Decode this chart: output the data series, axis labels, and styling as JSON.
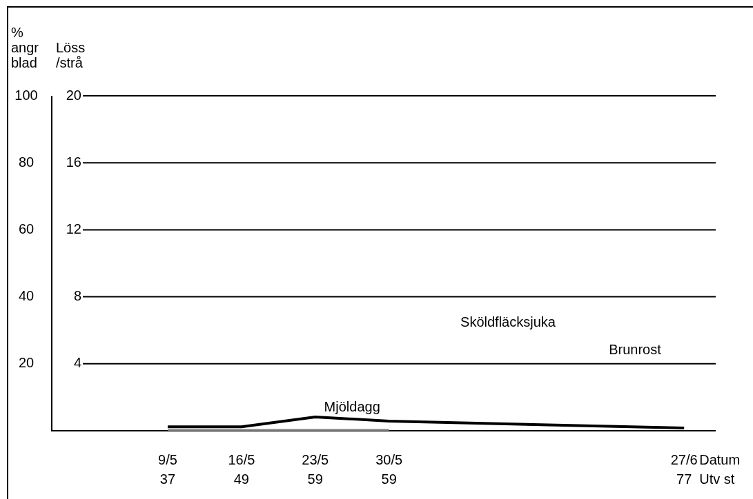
{
  "chart_data": {
    "type": "line",
    "x": [
      "--05-09",
      "--05-16",
      "--05-23",
      "--05-30",
      "--06-27"
    ],
    "xlim": [
      "--04-28",
      "--06-30"
    ],
    "xticks": [
      {
        "value": "--05-09",
        "label": "9/5\n37"
      },
      {
        "value": "--05-16",
        "label": "16/5\n49"
      },
      {
        "value": "--05-23",
        "label": "23/5\n59"
      },
      {
        "value": "--05-30",
        "label": "30/5\n59"
      },
      {
        "value": "--06-27",
        "label": "27/6\n77"
      }
    ],
    "xlabel": "Datum\nUtv st",
    "ylabel": "% angr blad",
    "y2label": "Löss /strå",
    "ylim": [
      0,
      100
    ],
    "yticks": [
      20,
      40,
      60,
      80,
      100
    ],
    "y2lim": [
      0,
      20
    ],
    "y2ticks": [
      4,
      8,
      12,
      16,
      20
    ],
    "series": [
      {
        "name": "Mjöldagg",
        "color": "#000000",
        "values": [
          1.2,
          1.2,
          4.1,
          2.9,
          0.8
        ]
      },
      {
        "color": "#808080",
        "axis": "y2",
        "x": [
          "--05-09",
          "--05-16",
          "--05-23",
          "--05-30"
        ],
        "values": [
          0,
          0,
          0,
          0
        ]
      }
    ],
    "annotations": [
      "Sköldfläcksjuka",
      "Brunrost"
    ],
    "grid": "y",
    "legend": false,
    "marker": "none",
    "line_style": "solid"
  }
}
